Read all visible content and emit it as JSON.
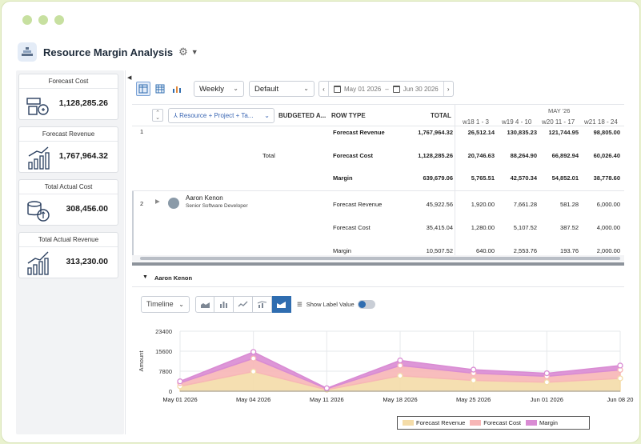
{
  "app": {
    "title": "Resource Margin Analysis",
    "accent": "#2f6db0"
  },
  "kpis": [
    {
      "label": "Forecast Cost",
      "value": "1,128,285.26",
      "icon": "money-bag-icon"
    },
    {
      "label": "Forecast Revenue",
      "value": "1,767,964.32",
      "icon": "growth-chart-icon"
    },
    {
      "label": "Total Actual Cost",
      "value": "308,456.00",
      "icon": "coin-stack-icon"
    },
    {
      "label": "Total Actual Revenue",
      "value": "313,230.00",
      "icon": "bar-growth-icon"
    }
  ],
  "toolbar": {
    "period": "Weekly",
    "view": "Default",
    "date_from": "May 01 2026",
    "date_sep": "–",
    "date_to": "Jun 30 2026"
  },
  "grid": {
    "group_by": "Resource + Project + Ta...",
    "headers": {
      "budgeted": "BUDGETED A...",
      "row_type": "ROW TYPE",
      "total": "TOTAL"
    },
    "month": "MAY '26",
    "weeks": [
      "w18 1 - 3",
      "w19 4 - 10",
      "w20 11 - 17",
      "w21 18 - 24"
    ],
    "row1": {
      "index": "1",
      "label": "Total",
      "lines": [
        {
          "type": "Forecast Revenue",
          "total": "1,767,964.32",
          "w": [
            "26,512.14",
            "130,835.23",
            "121,744.95",
            "98,805.00"
          ]
        },
        {
          "type": "Forecast Cost",
          "total": "1,128,285.26",
          "w": [
            "20,746.63",
            "88,264.90",
            "66,892.94",
            "60,026.40"
          ]
        },
        {
          "type": "Margin",
          "total": "639,679.06",
          "w": [
            "5,765.51",
            "42,570.34",
            "54,852.01",
            "38,778.60"
          ]
        }
      ]
    },
    "row2": {
      "index": "2",
      "name": "Aaron Kenon",
      "role": "Senior Software Developer",
      "lines": [
        {
          "type": "Forecast Revenue",
          "total": "45,922.56",
          "w": [
            "1,920.00",
            "7,661.28",
            "581.28",
            "6,000.00"
          ]
        },
        {
          "type": "Forecast Cost",
          "total": "35,415.04",
          "w": [
            "1,280.00",
            "5,107.52",
            "387.52",
            "4,000.00"
          ]
        },
        {
          "type": "Margin",
          "total": "10,507.52",
          "w": [
            "640.00",
            "2,553.76",
            "193.76",
            "2,000.00"
          ]
        }
      ]
    }
  },
  "detail": {
    "section_title": "Aaron Kenon",
    "timeline": "Timeline",
    "show_label": "Show Label Value"
  },
  "chart_data": {
    "type": "area",
    "x": [
      "May 01 2026",
      "May 04 2026",
      "May 11 2026",
      "May 18 2026",
      "May 25 2026",
      "Jun 01 2026",
      "Jun 08 20"
    ],
    "ylabel": "Amount",
    "yticks": [
      "23400",
      "15600",
      "7800",
      "0"
    ],
    "ylim": [
      0,
      23400
    ],
    "series": [
      {
        "name": "Forecast Revenue",
        "color": "#f4dca8",
        "values": [
          1920,
          7661,
          581,
          6000,
          4200,
          3500,
          5000
        ]
      },
      {
        "name": "Forecast Cost",
        "color": "#f7b6b6",
        "values": [
          1280,
          5108,
          388,
          4000,
          2800,
          2300,
          3300
        ]
      },
      {
        "name": "Margin",
        "color": "#d98bd3",
        "values": [
          640,
          2554,
          194,
          2000,
          1400,
          1200,
          1700
        ]
      }
    ]
  }
}
